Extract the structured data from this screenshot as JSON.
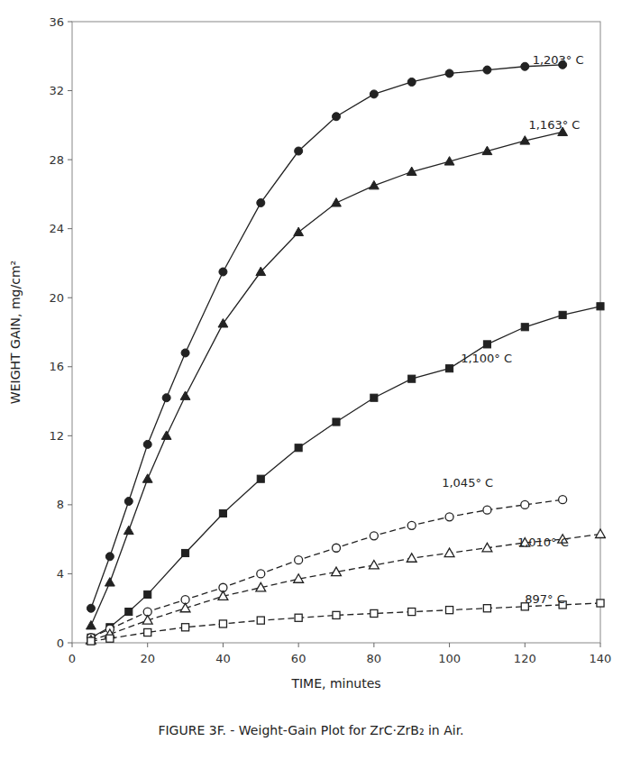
{
  "chart_data": {
    "type": "line",
    "x_label": "TIME,  minutes",
    "y_label": "WEIGHT GAIN, mg/cm²",
    "caption": "FIGURE 3F. - Weight-Gain Plot for ZrC·ZrB₂ in Air.",
    "xlim": [
      0,
      140
    ],
    "ylim": [
      0,
      36
    ],
    "xticks": [
      0,
      20,
      40,
      60,
      80,
      100,
      120,
      140
    ],
    "yticks": [
      0,
      4,
      8,
      12,
      16,
      20,
      24,
      28,
      32,
      36
    ],
    "grid": false,
    "series": [
      {
        "color": "#222222",
        "marker": "circle_filled",
        "line_style": "solid",
        "x": [
          5,
          10,
          15,
          20,
          25,
          30,
          40,
          50,
          60,
          70,
          80,
          90,
          100,
          110,
          120,
          130
        ],
        "values": [
          2.0,
          5.0,
          8.2,
          11.5,
          14.2,
          16.8,
          21.5,
          25.5,
          28.5,
          30.5,
          31.8,
          32.5,
          33.0,
          33.2,
          33.4,
          33.5
        ]
      },
      {
        "color": "#222222",
        "marker": "triangle_filled",
        "line_style": "solid",
        "x": [
          5,
          10,
          15,
          20,
          25,
          30,
          40,
          50,
          60,
          70,
          80,
          90,
          100,
          110,
          120,
          130
        ],
        "values": [
          1.0,
          3.5,
          6.5,
          9.5,
          12.0,
          14.3,
          18.5,
          21.5,
          23.8,
          25.5,
          26.5,
          27.3,
          27.9,
          28.5,
          29.1,
          29.6
        ]
      },
      {
        "color": "#222222",
        "marker": "square_filled",
        "line_style": "solid",
        "x": [
          5,
          10,
          15,
          20,
          30,
          40,
          50,
          60,
          70,
          80,
          90,
          100,
          110,
          120,
          130,
          140
        ],
        "values": [
          0.3,
          0.9,
          1.8,
          2.8,
          5.2,
          7.5,
          9.5,
          11.3,
          12.8,
          14.2,
          15.3,
          15.9,
          17.3,
          18.3,
          19.0,
          19.5
        ]
      },
      {
        "color": "#222222",
        "marker": "circle_open",
        "line_style": "dashed",
        "x": [
          5,
          10,
          20,
          30,
          40,
          50,
          60,
          70,
          80,
          90,
          100,
          110,
          120,
          130
        ],
        "values": [
          0.3,
          0.8,
          1.8,
          2.5,
          3.2,
          4.0,
          4.8,
          5.5,
          6.2,
          6.8,
          7.3,
          7.7,
          8.0,
          8.3
        ]
      },
      {
        "color": "#222222",
        "marker": "triangle_open",
        "line_style": "dashed",
        "x": [
          5,
          10,
          20,
          30,
          40,
          50,
          60,
          70,
          80,
          90,
          100,
          110,
          120,
          130,
          140
        ],
        "values": [
          0.15,
          0.5,
          1.3,
          2.0,
          2.7,
          3.2,
          3.7,
          4.1,
          4.5,
          4.9,
          5.2,
          5.5,
          5.8,
          6.0,
          6.3
        ]
      },
      {
        "color": "#222222",
        "marker": "square_open",
        "line_style": "dashed",
        "x": [
          5,
          10,
          20,
          30,
          40,
          50,
          60,
          70,
          80,
          90,
          100,
          110,
          120,
          130,
          140
        ],
        "values": [
          0.1,
          0.25,
          0.6,
          0.9,
          1.1,
          1.3,
          1.45,
          1.6,
          1.7,
          1.8,
          1.9,
          2.0,
          2.1,
          2.2,
          2.3
        ]
      }
    ],
    "annotations": [
      {
        "text": "1,203° C",
        "x": 122,
        "y": 33.8
      },
      {
        "text": "1,163° C",
        "x": 121,
        "y": 30.0
      },
      {
        "text": "1,100° C",
        "x": 103,
        "y": 16.5
      },
      {
        "text": "1,045° C",
        "x": 98,
        "y": 9.3
      },
      {
        "text": "1,010° C",
        "x": 118,
        "y": 5.8
      },
      {
        "text": "897° C",
        "x": 120,
        "y": 2.55
      }
    ]
  }
}
